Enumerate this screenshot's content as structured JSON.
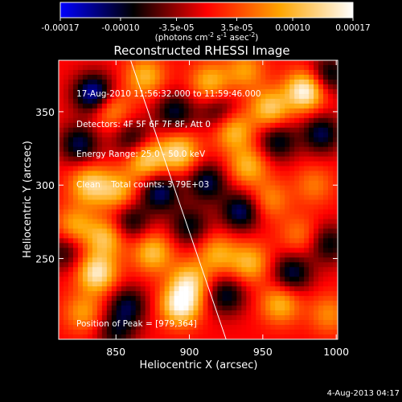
{
  "chart_data": {
    "type": "heatmap",
    "title": "Reconstructed RHESSI Image",
    "xlabel": "Heliocentric X (arcsec)",
    "ylabel": "Heliocentric Y (arcsec)",
    "xlim": [
      811,
      1001
    ],
    "ylim": [
      195,
      385
    ],
    "x_ticks": [
      850,
      900,
      950,
      1000
    ],
    "y_ticks": [
      250,
      300,
      350
    ],
    "colorbar": {
      "tick_labels": [
        "-0.00017",
        "-0.00010",
        "-3.5e-05",
        "3.5e-05",
        "0.00010",
        "0.00017"
      ],
      "tick_values": [
        -0.00017,
        -0.0001,
        -3.5e-05,
        3.5e-05,
        0.0001,
        0.00017
      ],
      "range": [
        -0.00017,
        0.00017
      ],
      "unit_label": "(photons cm",
      "unit_exp1": "-2",
      "unit_s": " s",
      "unit_exp2": "-1",
      "unit_asec": " asec",
      "unit_exp3": "-2",
      "unit_close": ")",
      "colormap": [
        "#0000ff",
        "#000000",
        "#ff0000",
        "#ffa500",
        "#ffffff"
      ]
    },
    "annotations": [
      "17-Aug-2010 11:56:32.000 to 11:59:46.000",
      "Detectors: 4F 5F 6F 7F 8F, Att 0",
      "Energy Range: 25.0 - 50.0 keV",
      "Clean    Total counts: 3.79E+03"
    ],
    "peak_label": "Position of Peak = [979,364]",
    "peak": [
      979,
      364
    ],
    "limb_line": {
      "x": [
        860,
        925
      ],
      "y": [
        385,
        195
      ]
    },
    "sources": [
      {
        "x": 979,
        "y": 364,
        "v": 0.00017
      },
      {
        "x": 955,
        "y": 352,
        "v": 0.00012
      },
      {
        "x": 930,
        "y": 337,
        "v": 0.00011
      },
      {
        "x": 914,
        "y": 370,
        "v": 0.0001
      },
      {
        "x": 893,
        "y": 322,
        "v": 0.00013
      },
      {
        "x": 870,
        "y": 318,
        "v": 0.00014
      },
      {
        "x": 940,
        "y": 313,
        "v": 0.0001
      },
      {
        "x": 832,
        "y": 300,
        "v": 0.00012
      },
      {
        "x": 851,
        "y": 296,
        "v": 0.0001
      },
      {
        "x": 822,
        "y": 272,
        "v": 9e-05
      },
      {
        "x": 843,
        "y": 264,
        "v": 0.00011
      },
      {
        "x": 900,
        "y": 234,
        "v": 0.00012
      },
      {
        "x": 919,
        "y": 253,
        "v": 9e-05
      },
      {
        "x": 941,
        "y": 247,
        "v": 0.0001
      },
      {
        "x": 875,
        "y": 254,
        "v": 0.00011
      },
      {
        "x": 894,
        "y": 218,
        "v": 0.00016
      },
      {
        "x": 837,
        "y": 240,
        "v": 0.00015
      },
      {
        "x": 828,
        "y": 213,
        "v": 8e-05
      },
      {
        "x": 962,
        "y": 219,
        "v": 0.0001
      },
      {
        "x": 955,
        "y": 290,
        "v": 7e-05
      },
      {
        "x": 985,
        "y": 300,
        "v": 6e-05
      },
      {
        "x": 975,
        "y": 266,
        "v": 6e-05
      },
      {
        "x": 846,
        "y": 352,
        "v": 9e-05
      },
      {
        "x": 870,
        "y": 374,
        "v": 0.0001
      },
      {
        "x": 938,
        "y": 378,
        "v": 8e-05
      },
      {
        "x": 995,
        "y": 212,
        "v": 7e-05
      },
      {
        "x": 835,
        "y": 362,
        "v": -0.00016
      },
      {
        "x": 825,
        "y": 328,
        "v": -0.00011
      },
      {
        "x": 862,
        "y": 330,
        "v": -0.0001
      },
      {
        "x": 880,
        "y": 295,
        "v": -0.00012
      },
      {
        "x": 912,
        "y": 302,
        "v": -0.00011
      },
      {
        "x": 935,
        "y": 282,
        "v": -0.00012
      },
      {
        "x": 960,
        "y": 330,
        "v": -0.0001
      },
      {
        "x": 990,
        "y": 335,
        "v": -0.00011
      },
      {
        "x": 970,
        "y": 240,
        "v": -0.00011
      },
      {
        "x": 925,
        "y": 225,
        "v": -0.0001
      },
      {
        "x": 858,
        "y": 218,
        "v": -0.0001
      },
      {
        "x": 860,
        "y": 275,
        "v": -9e-05
      },
      {
        "x": 900,
        "y": 272,
        "v": -9e-05
      },
      {
        "x": 815,
        "y": 255,
        "v": -8e-05
      },
      {
        "x": 995,
        "y": 375,
        "v": -0.0001
      },
      {
        "x": 995,
        "y": 260,
        "v": -9e-05
      },
      {
        "x": 920,
        "y": 350,
        "v": -8e-05
      },
      {
        "x": 890,
        "y": 350,
        "v": -0.0001
      },
      {
        "x": 850,
        "y": 200,
        "v": -8e-05
      }
    ]
  },
  "footer": {
    "date": "4-Aug-2013 04:17"
  }
}
